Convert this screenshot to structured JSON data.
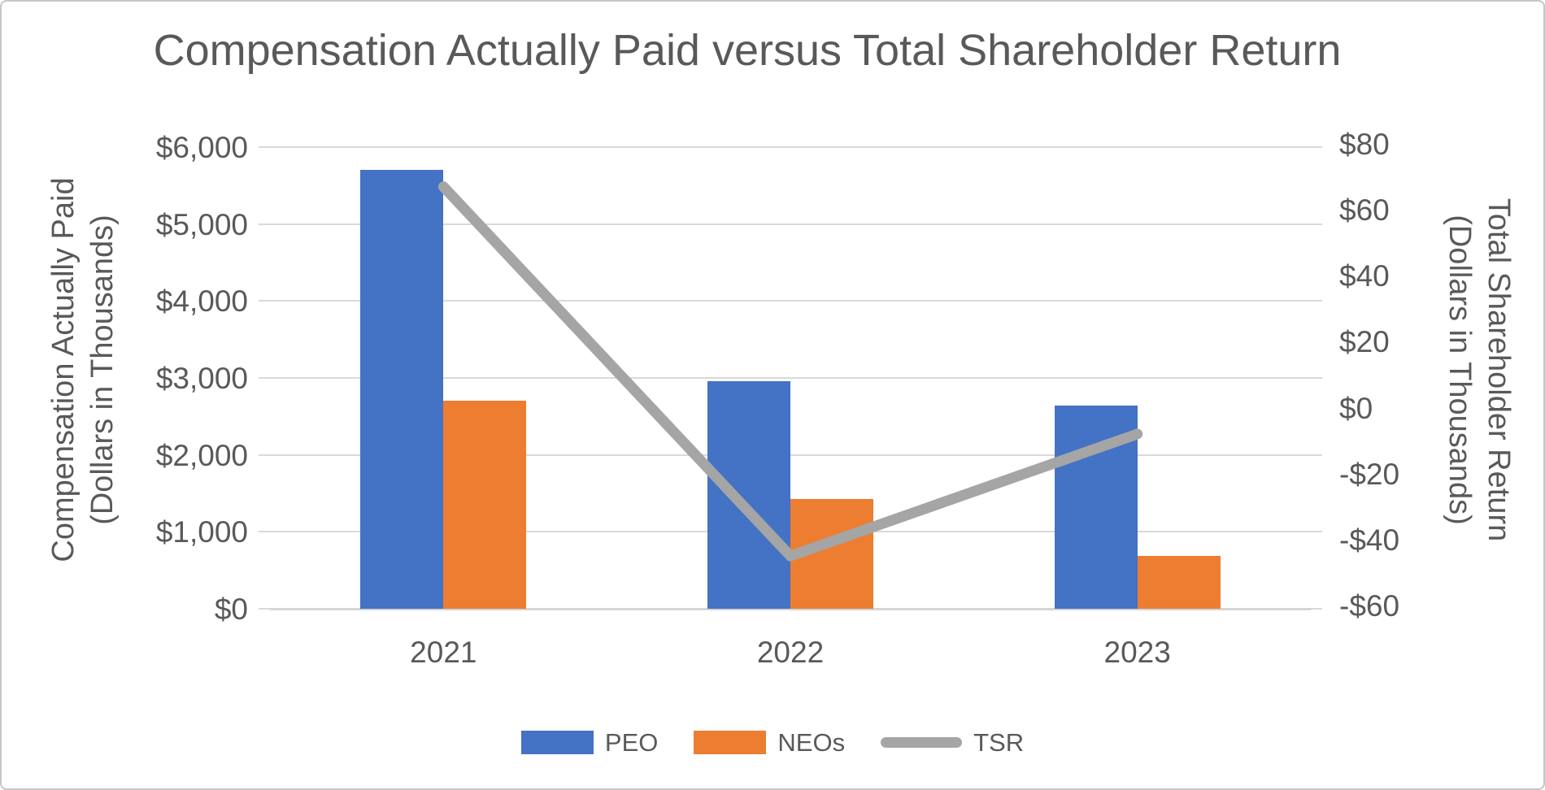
{
  "title": "Compensation Actually Paid versus Total Shareholder Return",
  "left_axis": {
    "title_line1": "Compensation Actually Paid",
    "title_line2": "(Dollars in Thousands)",
    "tick_labels": [
      "$6,000",
      "$5,000",
      "$4,000",
      "$3,000",
      "$2,000",
      "$1,000",
      "$0"
    ]
  },
  "right_axis": {
    "title_line1": "Total Shareholder Return",
    "title_line2": "(Dollars in Thousands)",
    "tick_labels": [
      "$80",
      "$60",
      "$40",
      "$20",
      "$0",
      "-$20",
      "-$40",
      "-$60"
    ]
  },
  "chart_data": {
    "type": "combo-bar-line",
    "title": "Compensation Actually Paid versus Total Shareholder Return",
    "categories": [
      "2021",
      "2022",
      "2023"
    ],
    "series": [
      {
        "name": "PEO",
        "type": "bar",
        "axis": "left",
        "color": "#4472C4",
        "values": [
          5700,
          2960,
          2640
        ]
      },
      {
        "name": "NEOs",
        "type": "bar",
        "axis": "left",
        "color": "#ED7D31",
        "values": [
          2700,
          1430,
          690
        ]
      },
      {
        "name": "TSR",
        "type": "line",
        "axis": "right",
        "color": "#A5A5A5",
        "values": [
          67,
          -45,
          -8
        ]
      }
    ],
    "ylabel_left": "Compensation Actually Paid (Dollars in Thousands)",
    "ylabel_right": "Total Shareholder Return (Dollars in Thousands)",
    "ylim_left": [
      0,
      6000
    ],
    "ylim_right": [
      -60,
      80
    ],
    "grid": "horizontal",
    "legend_position": "bottom"
  },
  "legend": {
    "items": [
      {
        "label": "PEO",
        "color": "#4472C4",
        "shape": "rect"
      },
      {
        "label": "NEOs",
        "color": "#ED7D31",
        "shape": "rect"
      },
      {
        "label": "TSR",
        "color": "#A5A5A5",
        "shape": "line"
      }
    ]
  },
  "colors": {
    "text": "#595959",
    "gridline": "#D9D9D9",
    "peo_blue": "#4472C4",
    "neos_orange": "#ED7D31",
    "tsr_gray": "#A5A5A5"
  }
}
